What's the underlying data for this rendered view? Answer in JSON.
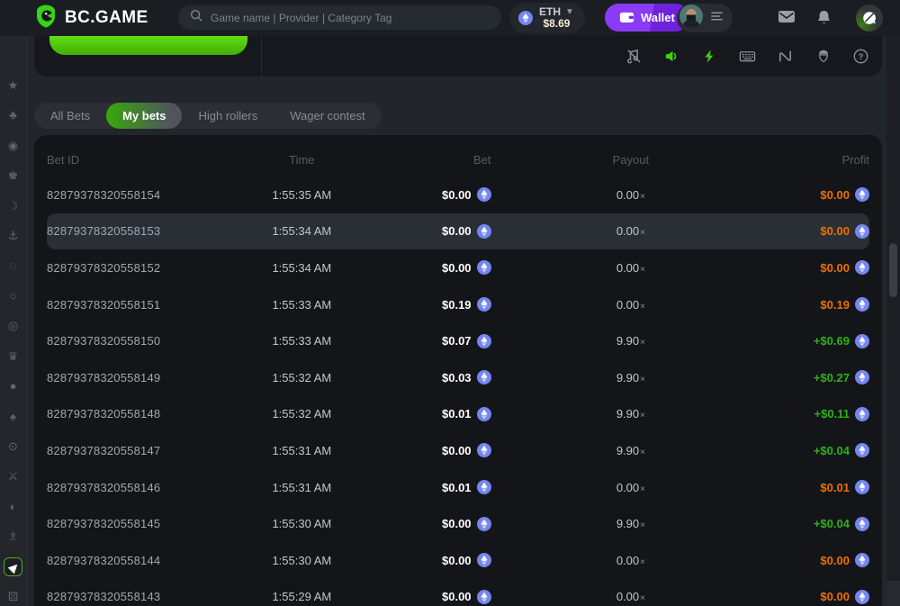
{
  "header": {
    "logo_text": "BC.GAME",
    "search_placeholder": "Game name | Provider | Category Tag",
    "currency": {
      "code": "ETH",
      "amount": "$8.69"
    },
    "wallet_label": "Wallet",
    "icons": [
      "mail-icon",
      "bell-icon",
      "chat-icon"
    ]
  },
  "colors": {
    "accent_green": "#3fca10",
    "brand_green": "#35d415",
    "wallet_purple": "#8a3bf5",
    "profit_loss_orange": "#ee6f02",
    "profit_win_green": "#2db213",
    "coin_blue": "#7486f0"
  },
  "game_toolbar": {
    "icons": [
      {
        "name": "music-off-icon",
        "key": "musicOff",
        "active": false
      },
      {
        "name": "sound-icon",
        "key": "speaker",
        "active": true
      },
      {
        "name": "turbo-icon",
        "key": "bolt",
        "active": true
      },
      {
        "name": "hotkeys-icon",
        "key": "keyboard",
        "active": false
      },
      {
        "name": "trends-icon",
        "key": "wave",
        "active": false
      },
      {
        "name": "seeds-icon",
        "key": "seed",
        "active": false
      },
      {
        "name": "help-icon",
        "key": "help",
        "active": false
      }
    ]
  },
  "sidebar": {
    "items": [
      {
        "name": "sidebar-item-crash",
        "glyph": "★",
        "active": false
      },
      {
        "name": "sidebar-item-cards",
        "glyph": "♣",
        "active": false
      },
      {
        "name": "sidebar-item-bingo",
        "glyph": "◉",
        "active": false
      },
      {
        "name": "sidebar-item-warrior",
        "glyph": "♚",
        "active": false
      },
      {
        "name": "sidebar-item-mango",
        "glyph": "☽",
        "active": false
      },
      {
        "name": "sidebar-item-fishing",
        "glyph": "⚓",
        "active": false
      },
      {
        "name": "sidebar-item-roulette",
        "glyph": "◌",
        "active": false
      },
      {
        "name": "sidebar-item-eggs",
        "glyph": "○",
        "active": false
      },
      {
        "name": "sidebar-item-coinflip",
        "glyph": "◎",
        "active": false
      },
      {
        "name": "sidebar-item-crown",
        "glyph": "♛",
        "active": false
      },
      {
        "name": "sidebar-item-mines",
        "glyph": "●",
        "active": false
      },
      {
        "name": "sidebar-item-poker",
        "glyph": "♠",
        "active": false
      },
      {
        "name": "sidebar-item-keno",
        "glyph": "⊙",
        "active": false
      },
      {
        "name": "sidebar-item-swords",
        "glyph": "⚔",
        "active": false
      },
      {
        "name": "sidebar-item-ufo",
        "glyph": "◐",
        "active": false
      },
      {
        "name": "sidebar-item-magic",
        "glyph": "♗",
        "active": false
      },
      {
        "name": "sidebar-item-aviator",
        "glyph": "▶",
        "active": true
      },
      {
        "name": "sidebar-item-dice",
        "glyph": "⚄",
        "active": false
      }
    ]
  },
  "tabs": [
    {
      "label": "All Bets",
      "active": false
    },
    {
      "label": "My bets",
      "active": true
    },
    {
      "label": "High rollers",
      "active": false
    },
    {
      "label": "Wager contest",
      "active": false
    }
  ],
  "table": {
    "columns": [
      "Bet ID",
      "Time",
      "Bet",
      "Payout",
      "Profit"
    ],
    "multiplier_symbol": "×",
    "rows": [
      {
        "bet_id": "82879378320558154",
        "time": "1:55:35 AM",
        "bet": "$0.00",
        "payout": "0.00",
        "profit": "$0.00",
        "status": "loss",
        "highlighted": false
      },
      {
        "bet_id": "82879378320558153",
        "time": "1:55:34 AM",
        "bet": "$0.00",
        "payout": "0.00",
        "profit": "$0.00",
        "status": "loss",
        "highlighted": true
      },
      {
        "bet_id": "82879378320558152",
        "time": "1:55:34 AM",
        "bet": "$0.00",
        "payout": "0.00",
        "profit": "$0.00",
        "status": "loss",
        "highlighted": false
      },
      {
        "bet_id": "82879378320558151",
        "time": "1:55:33 AM",
        "bet": "$0.19",
        "payout": "0.00",
        "profit": "$0.19",
        "status": "loss",
        "highlighted": false
      },
      {
        "bet_id": "82879378320558150",
        "time": "1:55:33 AM",
        "bet": "$0.07",
        "payout": "9.90",
        "profit": "+$0.69",
        "status": "win",
        "highlighted": false
      },
      {
        "bet_id": "82879378320558149",
        "time": "1:55:32 AM",
        "bet": "$0.03",
        "payout": "9.90",
        "profit": "+$0.27",
        "status": "win",
        "highlighted": false
      },
      {
        "bet_id": "82879378320558148",
        "time": "1:55:32 AM",
        "bet": "$0.01",
        "payout": "9.90",
        "profit": "+$0.11",
        "status": "win",
        "highlighted": false
      },
      {
        "bet_id": "82879378320558147",
        "time": "1:55:31 AM",
        "bet": "$0.00",
        "payout": "9.90",
        "profit": "+$0.04",
        "status": "win",
        "highlighted": false
      },
      {
        "bet_id": "82879378320558146",
        "time": "1:55:31 AM",
        "bet": "$0.01",
        "payout": "0.00",
        "profit": "$0.01",
        "status": "loss",
        "highlighted": false
      },
      {
        "bet_id": "82879378320558145",
        "time": "1:55:30 AM",
        "bet": "$0.00",
        "payout": "9.90",
        "profit": "+$0.04",
        "status": "win",
        "highlighted": false
      },
      {
        "bet_id": "82879378320558144",
        "time": "1:55:30 AM",
        "bet": "$0.00",
        "payout": "0.00",
        "profit": "$0.00",
        "status": "loss",
        "highlighted": false
      },
      {
        "bet_id": "82879378320558143",
        "time": "1:55:29 AM",
        "bet": "$0.00",
        "payout": "0.00",
        "profit": "$0.00",
        "status": "loss",
        "highlighted": false
      }
    ]
  }
}
